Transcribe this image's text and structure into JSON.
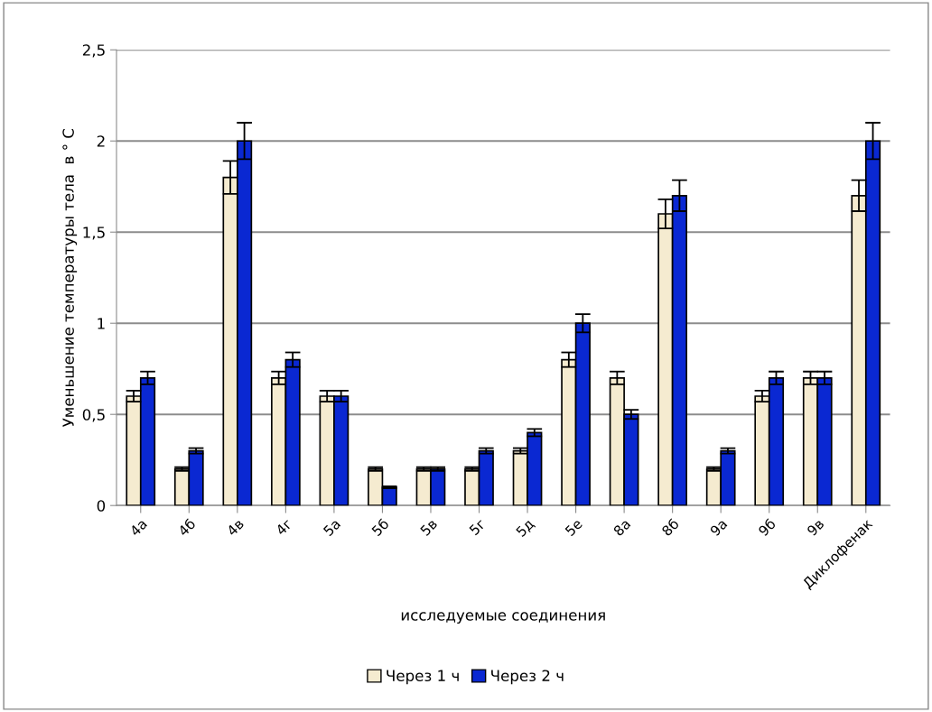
{
  "chart_data": {
    "type": "bar",
    "xlabel": "исследуемые соединения",
    "ylabel": "Уменьшение температуры тела  в ° С",
    "categories": [
      "4а",
      "4б",
      "4в",
      "4г",
      "5а",
      "5б",
      "5в",
      "5г",
      "5д",
      "5е",
      "8а",
      "8б",
      "9а",
      "9б",
      "9в",
      "Диклофенак"
    ],
    "series": [
      {
        "name": "Через 1 ч",
        "color": "#f5ebd0",
        "values": [
          0.6,
          0.2,
          1.8,
          0.7,
          0.6,
          0.2,
          0.2,
          0.2,
          0.3,
          0.8,
          0.7,
          1.6,
          0.2,
          0.6,
          0.7,
          1.7
        ],
        "errors": [
          0.03,
          0.01,
          0.09,
          0.035,
          0.03,
          0.01,
          0.01,
          0.01,
          0.015,
          0.04,
          0.035,
          0.08,
          0.01,
          0.03,
          0.035,
          0.085
        ]
      },
      {
        "name": "Через 2 ч",
        "color": "#0a28d2",
        "values": [
          0.7,
          0.3,
          2.0,
          0.8,
          0.6,
          0.1,
          0.2,
          0.3,
          0.4,
          1.0,
          0.5,
          1.7,
          0.3,
          0.7,
          0.7,
          2.0
        ],
        "errors": [
          0.035,
          0.015,
          0.1,
          0.04,
          0.03,
          0.005,
          0.01,
          0.015,
          0.02,
          0.05,
          0.025,
          0.085,
          0.015,
          0.035,
          0.035,
          0.1
        ]
      }
    ],
    "ylim": [
      0,
      2.5
    ],
    "yticks": [
      {
        "value": 0,
        "label": "0"
      },
      {
        "value": 0.5,
        "label": "0,5"
      },
      {
        "value": 1,
        "label": "1"
      },
      {
        "value": 1.5,
        "label": "1,5"
      },
      {
        "value": 2,
        "label": "2"
      },
      {
        "value": 2.5,
        "label": "2,5"
      }
    ],
    "grid": "y",
    "legend": "bottom"
  }
}
